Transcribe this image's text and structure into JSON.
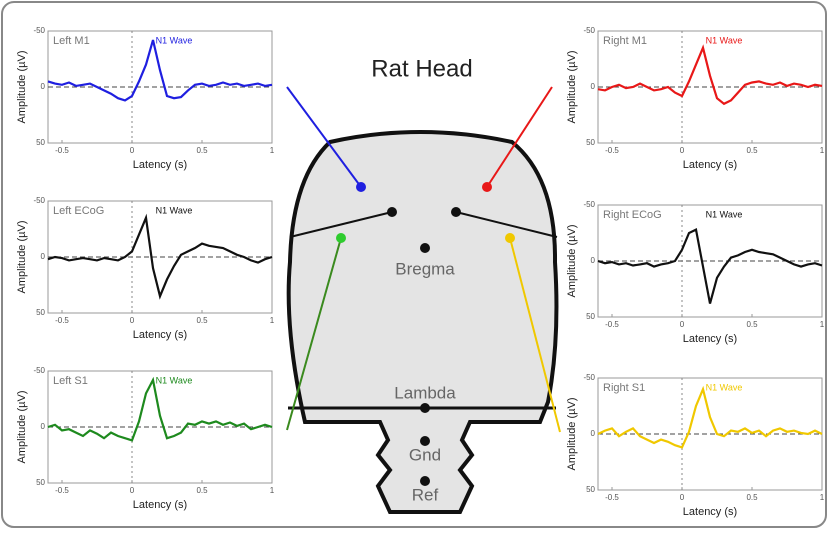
{
  "diagram": {
    "title": "Rat Head",
    "labels": [
      "Bregma",
      "Lambda",
      "Gnd",
      "Ref"
    ]
  },
  "chart_data": [
    {
      "type": "line",
      "title": "Left M1",
      "annotation": "N1 Wave",
      "xlabel": "Latency (s)",
      "ylabel": "Amplitude (µV)",
      "color": "#1f1fe0",
      "x": [
        -0.6,
        -0.55,
        -0.5,
        -0.45,
        -0.4,
        -0.35,
        -0.3,
        -0.25,
        -0.2,
        -0.15,
        -0.1,
        -0.05,
        0,
        0.05,
        0.1,
        0.15,
        0.2,
        0.25,
        0.3,
        0.35,
        0.4,
        0.45,
        0.5,
        0.55,
        0.6,
        0.65,
        0.7,
        0.75,
        0.8,
        0.85,
        0.9,
        0.95,
        1
      ],
      "values": [
        -5,
        -3,
        -2,
        -4,
        -1,
        -2,
        -3,
        0,
        3,
        6,
        10,
        12,
        8,
        -5,
        -20,
        -42,
        -15,
        8,
        10,
        9,
        3,
        -2,
        -3,
        -1,
        -2,
        -4,
        -2,
        -3,
        -1,
        -2,
        -3,
        -1,
        -2
      ],
      "xlim": [
        -0.6,
        1
      ],
      "ylim": [
        50,
        -50
      ],
      "xticks": [
        -0.5,
        0,
        0.5,
        1
      ],
      "yticks": [
        -50,
        0,
        50
      ]
    },
    {
      "type": "line",
      "title": "Left ECoG",
      "annotation": "N1 Wave",
      "xlabel": "Latency (s)",
      "ylabel": "Amplitude (µV)",
      "color": "#111111",
      "x": [
        -0.6,
        -0.55,
        -0.5,
        -0.45,
        -0.4,
        -0.35,
        -0.3,
        -0.25,
        -0.2,
        -0.15,
        -0.1,
        -0.05,
        0,
        0.05,
        0.1,
        0.15,
        0.2,
        0.25,
        0.3,
        0.35,
        0.4,
        0.45,
        0.5,
        0.55,
        0.6,
        0.65,
        0.7,
        0.75,
        0.8,
        0.85,
        0.9,
        0.95,
        1
      ],
      "values": [
        2,
        0,
        1,
        3,
        2,
        1,
        2,
        3,
        1,
        2,
        3,
        0,
        -5,
        -20,
        -35,
        10,
        35,
        20,
        8,
        -2,
        -5,
        -8,
        -12,
        -10,
        -9,
        -8,
        -5,
        -2,
        0,
        3,
        5,
        2,
        0
      ],
      "xlim": [
        -0.6,
        1
      ],
      "ylim": [
        50,
        -50
      ],
      "xticks": [
        -0.5,
        0,
        0.5,
        1
      ],
      "yticks": [
        -50,
        0,
        50
      ]
    },
    {
      "type": "line",
      "title": "Left S1",
      "annotation": "N1 Wave",
      "xlabel": "Latency (s)",
      "ylabel": "Amplitude (µV)",
      "color": "#1e8a1e",
      "x": [
        -0.6,
        -0.55,
        -0.5,
        -0.45,
        -0.4,
        -0.35,
        -0.3,
        -0.25,
        -0.2,
        -0.15,
        -0.1,
        -0.05,
        0,
        0.05,
        0.1,
        0.15,
        0.2,
        0.25,
        0.3,
        0.35,
        0.4,
        0.45,
        0.5,
        0.55,
        0.6,
        0.65,
        0.7,
        0.75,
        0.8,
        0.85,
        0.9,
        0.95,
        1
      ],
      "values": [
        0,
        -2,
        3,
        2,
        5,
        8,
        3,
        6,
        10,
        5,
        8,
        10,
        12,
        -5,
        -30,
        -42,
        -10,
        10,
        8,
        5,
        -3,
        -2,
        -5,
        -3,
        -5,
        -2,
        -4,
        -1,
        -3,
        2,
        0,
        -2,
        0
      ],
      "xlim": [
        -0.6,
        1
      ],
      "ylim": [
        50,
        -50
      ],
      "xticks": [
        -0.5,
        0,
        0.5,
        1
      ],
      "yticks": [
        -50,
        0,
        50
      ]
    },
    {
      "type": "line",
      "title": "Right M1",
      "annotation": "N1 Wave",
      "xlabel": "Latency (s)",
      "ylabel": "Amplitude (µV)",
      "color": "#e81818",
      "x": [
        -0.6,
        -0.55,
        -0.5,
        -0.45,
        -0.4,
        -0.35,
        -0.3,
        -0.25,
        -0.2,
        -0.15,
        -0.1,
        -0.05,
        0,
        0.05,
        0.1,
        0.15,
        0.2,
        0.25,
        0.3,
        0.35,
        0.4,
        0.45,
        0.5,
        0.55,
        0.6,
        0.65,
        0.7,
        0.75,
        0.8,
        0.85,
        0.9,
        0.95,
        1
      ],
      "values": [
        2,
        3,
        0,
        -2,
        1,
        0,
        -3,
        0,
        3,
        2,
        0,
        5,
        8,
        -5,
        -20,
        -35,
        -10,
        10,
        15,
        12,
        5,
        -2,
        -4,
        -5,
        -3,
        -2,
        -4,
        -1,
        -3,
        -2,
        0,
        -2,
        -1
      ],
      "xlim": [
        -0.6,
        1
      ],
      "ylim": [
        50,
        -50
      ],
      "xticks": [
        -0.5,
        0,
        0.5,
        1
      ],
      "yticks": [
        -50,
        0,
        50
      ]
    },
    {
      "type": "line",
      "title": "Right ECoG",
      "annotation": "N1 Wave",
      "xlabel": "Latency (s)",
      "ylabel": "Amplitude (µV)",
      "color": "#111111",
      "x": [
        -0.6,
        -0.55,
        -0.5,
        -0.45,
        -0.4,
        -0.35,
        -0.3,
        -0.25,
        -0.2,
        -0.15,
        -0.1,
        -0.05,
        0,
        0.05,
        0.1,
        0.15,
        0.2,
        0.25,
        0.3,
        0.35,
        0.4,
        0.45,
        0.5,
        0.55,
        0.6,
        0.65,
        0.7,
        0.75,
        0.8,
        0.85,
        0.9,
        0.95,
        1
      ],
      "values": [
        0,
        2,
        1,
        3,
        2,
        4,
        3,
        2,
        5,
        3,
        2,
        0,
        -10,
        -25,
        -28,
        5,
        38,
        15,
        5,
        -3,
        -5,
        -8,
        -10,
        -8,
        -7,
        -6,
        -3,
        0,
        3,
        5,
        3,
        2,
        4
      ],
      "xlim": [
        -0.6,
        1
      ],
      "ylim": [
        50,
        -50
      ],
      "xticks": [
        -0.5,
        0,
        0.5,
        1
      ],
      "yticks": [
        -50,
        0,
        50
      ]
    },
    {
      "type": "line",
      "title": "Right S1",
      "annotation": "N1 Wave",
      "xlabel": "Latency (s)",
      "ylabel": "Amplitude (µV)",
      "color": "#f0c800",
      "x": [
        -0.6,
        -0.55,
        -0.5,
        -0.45,
        -0.4,
        -0.35,
        -0.3,
        -0.25,
        -0.2,
        -0.15,
        -0.1,
        -0.05,
        0,
        0.05,
        0.1,
        0.15,
        0.2,
        0.25,
        0.3,
        0.35,
        0.4,
        0.45,
        0.5,
        0.55,
        0.6,
        0.65,
        0.7,
        0.75,
        0.8,
        0.85,
        0.9,
        0.95,
        1
      ],
      "values": [
        0,
        -3,
        -5,
        2,
        -2,
        -5,
        2,
        5,
        8,
        5,
        7,
        10,
        12,
        -2,
        -25,
        -40,
        -15,
        0,
        2,
        -3,
        -2,
        -5,
        -1,
        -3,
        2,
        -3,
        -5,
        -2,
        -3,
        -1,
        0,
        -3,
        0
      ],
      "xlim": [
        -0.6,
        1
      ],
      "ylim": [
        50,
        -50
      ],
      "xticks": [
        -0.5,
        0,
        0.5,
        1
      ],
      "yticks": [
        -50,
        0,
        50
      ]
    }
  ]
}
